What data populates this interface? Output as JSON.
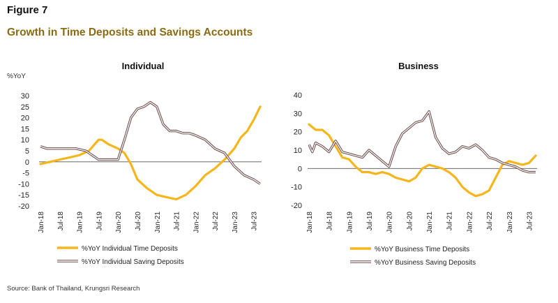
{
  "figure_label": "Figure 7",
  "title": "Growth in Time Deposits and Savings Accounts",
  "source": "Source: Bank of Thailand, Krungsri Research",
  "colors": {
    "time": "#f7b51c",
    "saving": "#6e4b4b",
    "saving_inner": "#ffffff",
    "title": "#8a6a12",
    "zero_line": "#555555"
  },
  "chart_data": [
    {
      "type": "line",
      "title": "Individual",
      "ylabel": "%YoY",
      "ylim": [
        -20,
        30
      ],
      "yticks": [
        -20,
        -15,
        -10,
        -5,
        0,
        5,
        10,
        15,
        20,
        25,
        30
      ],
      "xlim": [
        "Jan-18",
        "Sep-23"
      ],
      "xticks": [
        "Jan-18",
        "Jul-18",
        "Jan-19",
        "Jul-19",
        "Jan-20",
        "Jul-20",
        "Jan-21",
        "Jul-21",
        "Jan-22",
        "Jul-22",
        "Jan-23",
        "Jul-23"
      ],
      "legend_position": "bottom-left",
      "series": [
        {
          "name": "%YoY Individual Time Deposits",
          "style": "thick",
          "points": [
            [
              "Jan-18",
              -1
            ],
            [
              "Apr-18",
              0
            ],
            [
              "Jul-18",
              1
            ],
            [
              "Oct-18",
              2
            ],
            [
              "Jan-19",
              3
            ],
            [
              "Apr-19",
              5
            ],
            [
              "Jul-19",
              10
            ],
            [
              "Aug-19",
              10
            ],
            [
              "Oct-19",
              8
            ],
            [
              "Jan-20",
              6
            ],
            [
              "Mar-20",
              4
            ],
            [
              "May-20",
              -1
            ],
            [
              "Jul-20",
              -8
            ],
            [
              "Oct-20",
              -12
            ],
            [
              "Jan-21",
              -15
            ],
            [
              "Apr-21",
              -16
            ],
            [
              "Jul-21",
              -17
            ],
            [
              "Oct-21",
              -15
            ],
            [
              "Jan-22",
              -11
            ],
            [
              "Apr-22",
              -6
            ],
            [
              "Jul-22",
              -3
            ],
            [
              "Oct-22",
              1
            ],
            [
              "Jan-23",
              6
            ],
            [
              "Mar-23",
              11
            ],
            [
              "May-23",
              14
            ],
            [
              "Jul-23",
              19
            ],
            [
              "Sep-23",
              25
            ]
          ]
        },
        {
          "name": "%YoY Individual Saving Deposits",
          "style": "double",
          "points": [
            [
              "Jan-18",
              7
            ],
            [
              "Mar-18",
              6
            ],
            [
              "Jun-18",
              6
            ],
            [
              "Sep-18",
              6
            ],
            [
              "Dec-18",
              6
            ],
            [
              "Mar-19",
              5
            ],
            [
              "May-19",
              3
            ],
            [
              "Jul-19",
              1
            ],
            [
              "Sep-19",
              1
            ],
            [
              "Nov-19",
              1
            ],
            [
              "Jan-20",
              1
            ],
            [
              "Mar-20",
              10
            ],
            [
              "May-20",
              20
            ],
            [
              "Jul-20",
              24
            ],
            [
              "Sep-20",
              25
            ],
            [
              "Nov-20",
              27
            ],
            [
              "Jan-21",
              25
            ],
            [
              "Mar-21",
              17
            ],
            [
              "May-21",
              14
            ],
            [
              "Jul-21",
              14
            ],
            [
              "Sep-21",
              13
            ],
            [
              "Nov-21",
              13
            ],
            [
              "Jan-22",
              12
            ],
            [
              "Apr-22",
              10
            ],
            [
              "Jul-22",
              6
            ],
            [
              "Oct-22",
              4
            ],
            [
              "Jan-23",
              -2
            ],
            [
              "Apr-23",
              -6
            ],
            [
              "Jul-23",
              -8
            ],
            [
              "Sep-23",
              -10
            ]
          ]
        }
      ]
    },
    {
      "type": "line",
      "title": "Business",
      "ylim": [
        -20,
        40
      ],
      "yticks": [
        -20,
        -10,
        0,
        10,
        20,
        30,
        40
      ],
      "xlim": [
        "Jan-18",
        "Sep-23"
      ],
      "xticks": [
        "Jan-18",
        "Jul-18",
        "Jan-19",
        "Jul-19",
        "Jan-20",
        "Jul-20",
        "Jan-21",
        "Jul-21",
        "Jan-22",
        "Jul-22",
        "Jan-23",
        "Jul-23"
      ],
      "legend_position": "bottom-left",
      "series": [
        {
          "name": "%YoY Business Time Deposits",
          "style": "thick",
          "points": [
            [
              "Jan-18",
              24
            ],
            [
              "Mar-18",
              21
            ],
            [
              "May-18",
              21
            ],
            [
              "Jul-18",
              18
            ],
            [
              "Sep-18",
              12
            ],
            [
              "Nov-18",
              6
            ],
            [
              "Jan-19",
              5
            ],
            [
              "Mar-19",
              1
            ],
            [
              "May-19",
              -2
            ],
            [
              "Jul-19",
              -2
            ],
            [
              "Sep-19",
              -3
            ],
            [
              "Nov-19",
              -2
            ],
            [
              "Jan-20",
              -3
            ],
            [
              "Mar-20",
              -5
            ],
            [
              "May-20",
              -6
            ],
            [
              "Jul-20",
              -7
            ],
            [
              "Sep-20",
              -5
            ],
            [
              "Nov-20",
              0
            ],
            [
              "Jan-21",
              2
            ],
            [
              "Mar-21",
              1
            ],
            [
              "May-21",
              0
            ],
            [
              "Jul-21",
              -2
            ],
            [
              "Sep-21",
              -5
            ],
            [
              "Nov-21",
              -10
            ],
            [
              "Jan-22",
              -13
            ],
            [
              "Mar-22",
              -15
            ],
            [
              "May-22",
              -14
            ],
            [
              "Jul-22",
              -12
            ],
            [
              "Sep-22",
              -5
            ],
            [
              "Nov-22",
              2
            ],
            [
              "Jan-23",
              4
            ],
            [
              "Mar-23",
              3
            ],
            [
              "May-23",
              2
            ],
            [
              "Jul-23",
              3
            ],
            [
              "Sep-23",
              7
            ]
          ]
        },
        {
          "name": "%YoY Business Saving Deposits",
          "style": "double",
          "points": [
            [
              "Jan-18",
              13
            ],
            [
              "Feb-18",
              9
            ],
            [
              "Mar-18",
              14
            ],
            [
              "May-18",
              12
            ],
            [
              "Jul-18",
              9
            ],
            [
              "Sep-18",
              15
            ],
            [
              "Nov-18",
              9
            ],
            [
              "Jan-19",
              8
            ],
            [
              "Mar-19",
              7
            ],
            [
              "May-19",
              6
            ],
            [
              "Jul-19",
              10
            ],
            [
              "Sep-19",
              7
            ],
            [
              "Nov-19",
              4
            ],
            [
              "Jan-20",
              1
            ],
            [
              "Mar-20",
              12
            ],
            [
              "May-20",
              19
            ],
            [
              "Jul-20",
              22
            ],
            [
              "Sep-20",
              25
            ],
            [
              "Nov-20",
              26
            ],
            [
              "Jan-21",
              31
            ],
            [
              "Mar-21",
              17
            ],
            [
              "May-21",
              11
            ],
            [
              "Jul-21",
              8
            ],
            [
              "Sep-21",
              9
            ],
            [
              "Nov-21",
              12
            ],
            [
              "Jan-22",
              11
            ],
            [
              "Mar-22",
              13
            ],
            [
              "May-22",
              10
            ],
            [
              "Jul-22",
              6
            ],
            [
              "Sep-22",
              5
            ],
            [
              "Nov-22",
              3
            ],
            [
              "Jan-23",
              2
            ],
            [
              "Mar-23",
              1
            ],
            [
              "May-23",
              -1
            ],
            [
              "Jul-23",
              -2
            ],
            [
              "Sep-23",
              -2
            ]
          ]
        }
      ]
    }
  ]
}
